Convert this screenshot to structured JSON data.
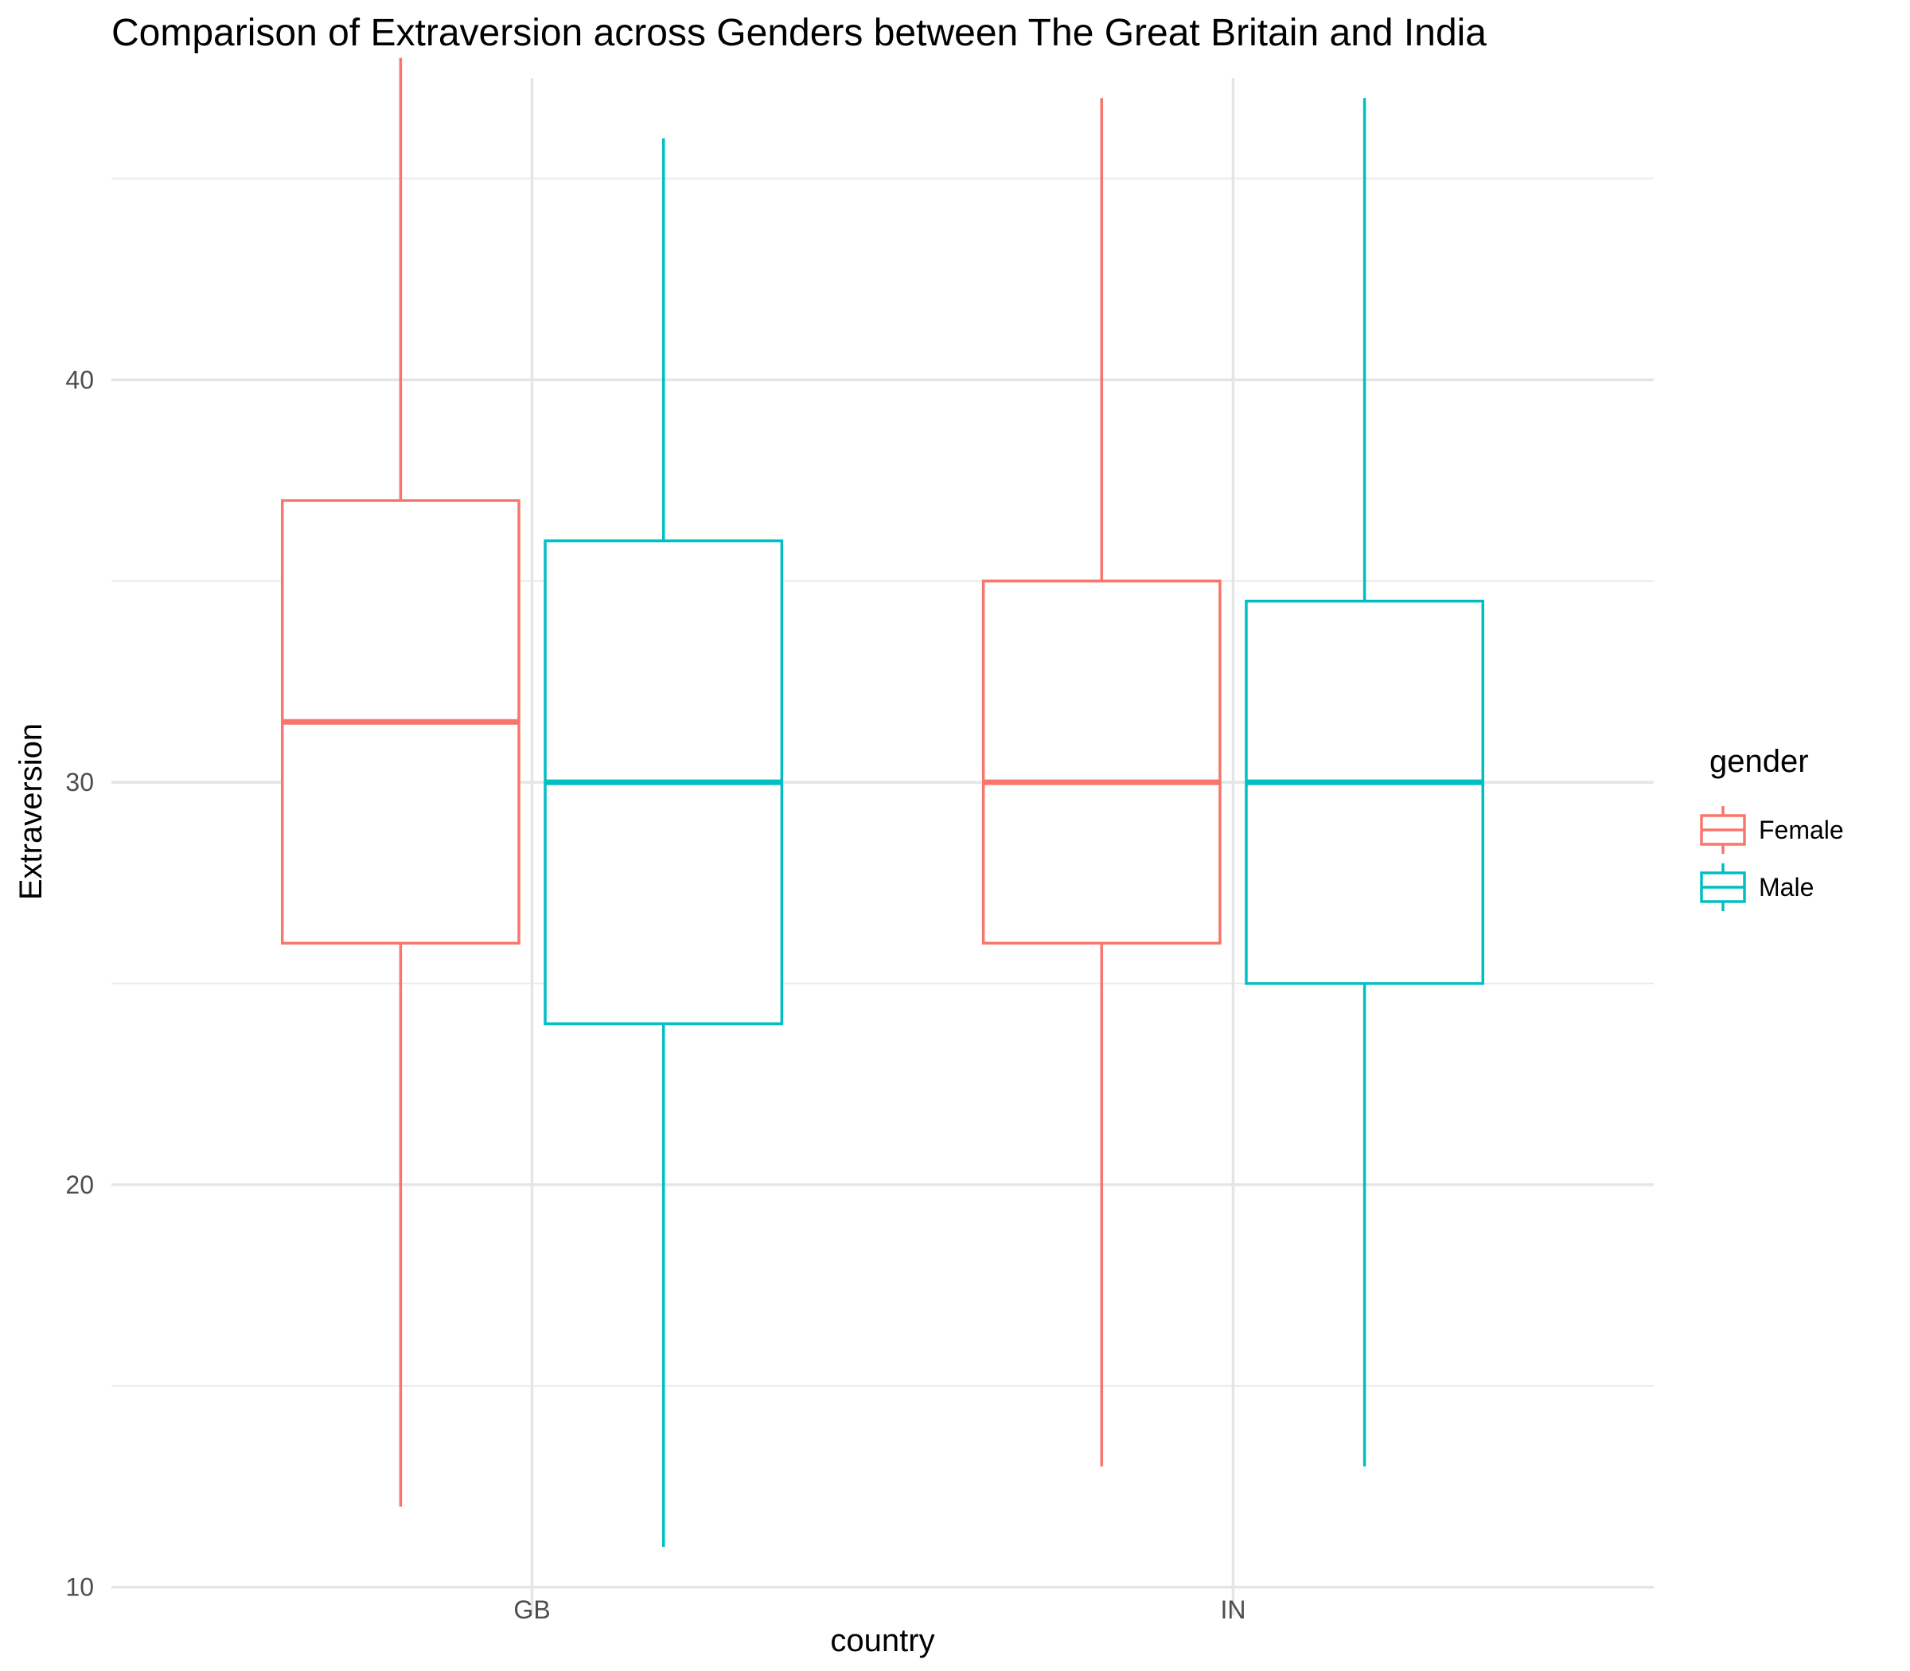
{
  "chart_data": {
    "type": "box",
    "title": "Comparison of Extraversion across Genders between The Great Britain and India",
    "xlabel": "country",
    "ylabel": "Extraversion",
    "categories": [
      "GB",
      "IN"
    ],
    "ylim": [
      9.3,
      47.5
    ],
    "y_ticks": [
      10,
      20,
      30,
      40
    ],
    "y_tick_labels": [
      "10",
      "20",
      "30",
      "40"
    ],
    "grid": true,
    "legend": {
      "title": "gender",
      "position": "right"
    },
    "series": [
      {
        "name": "Female",
        "color": "#F8766D",
        "boxes": [
          {
            "min": 12,
            "q1": 26,
            "median": 31.5,
            "q3": 37,
            "max": 48
          },
          {
            "min": 13,
            "q1": 26,
            "median": 30,
            "q3": 35,
            "max": 47
          }
        ]
      },
      {
        "name": "Male",
        "color": "#00BFC4",
        "boxes": [
          {
            "min": 11,
            "q1": 24,
            "median": 30,
            "q3": 36,
            "max": 46
          },
          {
            "min": 13,
            "q1": 25,
            "median": 30,
            "q3": 34.5,
            "max": 47
          }
        ]
      }
    ]
  }
}
